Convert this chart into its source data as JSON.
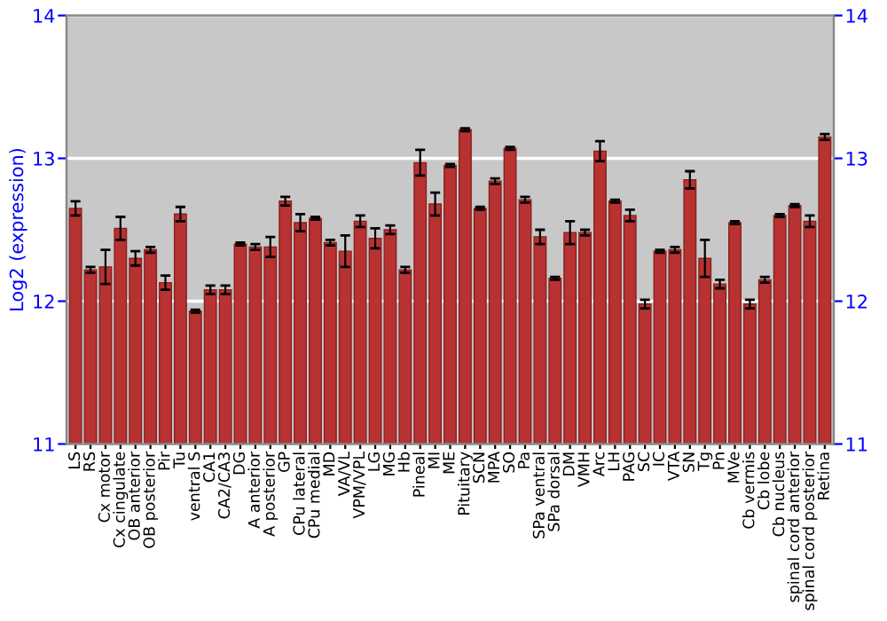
{
  "chart_data": {
    "type": "bar",
    "ylabel": "Log2 (expression)",
    "categories": [
      "LS",
      "RS",
      "Cx motor",
      "Cx cingulate",
      "OB anterior",
      "OB posterior",
      "Pir",
      "Tu",
      "ventral S",
      "CA1",
      "CA2/CA3",
      "DG",
      "A anterior",
      "A posterior",
      "GP",
      "CPu lateral",
      "CPu medial",
      "MD",
      "VA/VL",
      "VPM/VPL",
      "LG",
      "MG",
      "Hb",
      "Pineal",
      "MI",
      "ME",
      "Pituitary",
      "SCN",
      "MPA",
      "SO",
      "Pa",
      "SPa ventral",
      "SPa dorsal",
      "DM",
      "VMH",
      "Arc",
      "LH",
      "PAG",
      "SC",
      "IC",
      "VTA",
      "SN",
      "Tg",
      "Pn",
      "MVe",
      "Cb vermis",
      "Cb lobe",
      "Cb nucleus",
      "spinal cord anterior",
      "spinal cord posterior",
      "Retina"
    ],
    "values": [
      12.65,
      12.22,
      12.24,
      12.51,
      12.3,
      12.36,
      12.13,
      12.61,
      11.93,
      12.08,
      12.08,
      12.4,
      12.38,
      12.38,
      12.7,
      12.55,
      12.58,
      12.41,
      12.35,
      12.56,
      12.44,
      12.5,
      12.22,
      12.97,
      12.68,
      12.95,
      13.2,
      12.65,
      12.84,
      13.07,
      12.71,
      12.45,
      12.16,
      12.48,
      12.48,
      13.05,
      12.7,
      12.6,
      11.98,
      12.35,
      12.36,
      12.85,
      12.3,
      12.12,
      12.55,
      11.98,
      12.15,
      12.6,
      12.67,
      12.56,
      13.15
    ],
    "errors": [
      0.05,
      0.02,
      0.12,
      0.08,
      0.05,
      0.02,
      0.05,
      0.05,
      0.01,
      0.03,
      0.03,
      0.01,
      0.02,
      0.07,
      0.03,
      0.06,
      0.01,
      0.02,
      0.11,
      0.04,
      0.07,
      0.03,
      0.02,
      0.09,
      0.08,
      0.01,
      0.01,
      0.01,
      0.02,
      0.01,
      0.02,
      0.05,
      0.01,
      0.08,
      0.02,
      0.07,
      0.01,
      0.04,
      0.03,
      0.01,
      0.02,
      0.06,
      0.13,
      0.03,
      0.01,
      0.03,
      0.02,
      0.01,
      0.01,
      0.04,
      0.02
    ],
    "color": "#b83232",
    "ylim": [
      11,
      14
    ],
    "yticks": [
      11,
      12,
      13,
      14
    ],
    "y2lim": [
      11,
      14
    ],
    "y2ticks": [
      11,
      12,
      13,
      14
    ],
    "grid": "y"
  }
}
